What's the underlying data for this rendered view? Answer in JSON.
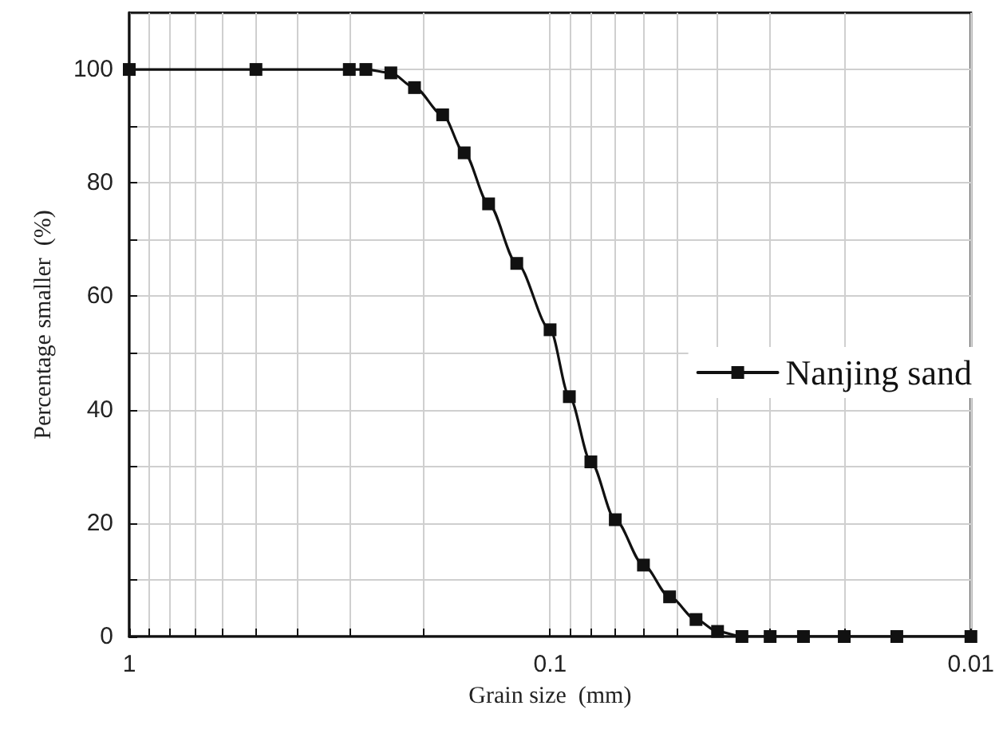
{
  "chart_data": {
    "type": "line",
    "xlabel": "Grain size  (mm)",
    "ylabel": "Percentage smaller  (%)",
    "log": "x",
    "xlim": [
      1,
      0.01
    ],
    "ylim": [
      0,
      110
    ],
    "xticks": [
      1,
      {
        "value": 0.9,
        "label": null
      },
      {
        "value": 0.8,
        "label": null
      },
      {
        "value": 0.7,
        "label": null
      },
      {
        "value": 0.6,
        "label": null
      },
      {
        "value": 0.5,
        "label": null
      },
      {
        "value": 0.4,
        "label": null
      },
      {
        "value": 0.3,
        "label": null
      },
      {
        "value": 0.2,
        "label": null
      },
      0.1,
      {
        "value": 0.09,
        "label": null
      },
      {
        "value": 0.08,
        "label": null
      },
      {
        "value": 0.07,
        "label": null
      },
      {
        "value": 0.06,
        "label": null
      },
      {
        "value": 0.05,
        "label": null
      },
      {
        "value": 0.04,
        "label": null
      },
      {
        "value": 0.03,
        "label": null
      },
      {
        "value": 0.02,
        "label": null
      },
      0.01
    ],
    "yticks": [
      0,
      {
        "value": 10,
        "label": null
      },
      20,
      {
        "value": 30,
        "label": null
      },
      40,
      {
        "value": 50,
        "label": null
      },
      60,
      {
        "value": 70,
        "label": null
      },
      80,
      {
        "value": 90,
        "label": null
      },
      100
    ],
    "grid": true,
    "legend": "right",
    "marker": "square",
    "line_style": "solid",
    "series": [
      {
        "name": "Nanjing sand",
        "color": "#111111",
        "x": [
          1,
          0.5,
          0.3,
          0.274,
          0.239,
          0.21,
          0.18,
          0.16,
          0.14,
          0.12,
          0.1,
          0.09,
          0.08,
          0.07,
          0.06,
          0.052,
          0.045,
          0.04,
          0.035,
          0.03,
          0.025,
          0.02,
          0.015,
          0.01
        ],
        "values": [
          100,
          100,
          100,
          100,
          99.4,
          96.8,
          92,
          85.3,
          76.3,
          65.8,
          54.1,
          42.3,
          30.8,
          20.6,
          12.6,
          7,
          3,
          0.9,
          0,
          0,
          0,
          0,
          0,
          0
        ]
      }
    ]
  }
}
